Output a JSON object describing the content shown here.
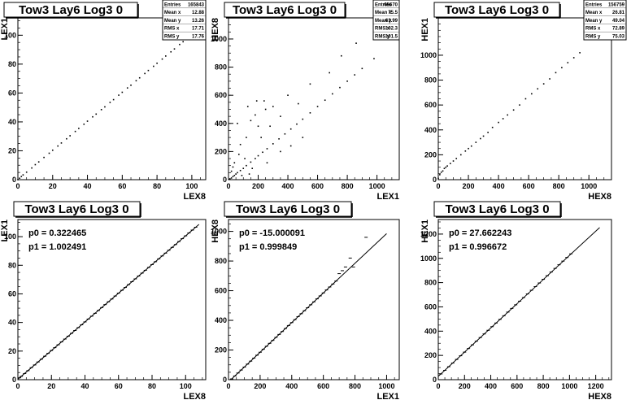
{
  "chart_data": [
    {
      "type": "scatter",
      "title": "Tow3 Lay6 Log3 0",
      "xlabel": "LEX8",
      "ylabel": "LEX1",
      "xlim": [
        0,
        108
      ],
      "ylim": [
        0,
        112
      ],
      "xticks": [
        "0",
        "20",
        "40",
        "60",
        "80",
        "100"
      ],
      "yticks": [
        "0",
        "20",
        "40",
        "60",
        "80",
        "100"
      ],
      "stats": [
        {
          "label": "Entries",
          "value": "165843"
        },
        {
          "label": "Mean x",
          "value": "12.88"
        },
        {
          "label": "Mean y",
          "value": "13.26"
        },
        {
          "label": "RMS x",
          "value": "17.71"
        },
        {
          "label": "RMS y",
          "value": "17.76"
        }
      ],
      "points": [
        [
          0,
          0
        ],
        [
          1,
          1
        ],
        [
          2,
          2.2
        ],
        [
          3,
          3.3
        ],
        [
          5,
          5.2
        ],
        [
          8,
          8.1
        ],
        [
          10,
          10.4
        ],
        [
          12,
          12.3
        ],
        [
          15,
          15.4
        ],
        [
          18,
          18.3
        ],
        [
          20,
          20.4
        ],
        [
          23,
          23.3
        ],
        [
          25,
          25.4
        ],
        [
          28,
          28.3
        ],
        [
          30,
          30.4
        ],
        [
          33,
          33.4
        ],
        [
          35,
          35.5
        ],
        [
          38,
          38.4
        ],
        [
          40,
          40.5
        ],
        [
          43,
          43.5
        ],
        [
          45,
          45.4
        ],
        [
          48,
          48.5
        ],
        [
          50,
          50.4
        ],
        [
          53,
          53.5
        ],
        [
          55,
          55.4
        ],
        [
          58,
          58.5
        ],
        [
          60,
          60.5
        ],
        [
          63,
          63.5
        ],
        [
          65,
          65.4
        ],
        [
          68,
          68.5
        ],
        [
          70,
          70.5
        ],
        [
          73,
          73.5
        ],
        [
          75,
          75.6
        ],
        [
          78,
          78.5
        ],
        [
          80,
          80.6
        ],
        [
          83,
          83.5
        ],
        [
          85,
          85.6
        ],
        [
          88,
          88.5
        ],
        [
          90,
          90.5
        ],
        [
          93,
          93.6
        ],
        [
          95,
          95.5
        ],
        [
          98,
          98.6
        ],
        [
          100,
          100.5
        ],
        [
          102,
          102.6
        ],
        [
          104,
          104.5
        ],
        [
          106,
          106.7
        ]
      ]
    },
    {
      "type": "scatter",
      "title": "Tow3 Lay6 Log3 0",
      "xlabel": "LEX1",
      "ylabel": "HEX8",
      "xlim": [
        0,
        1150
      ],
      "ylim": [
        0,
        1150
      ],
      "xticks": [
        "0",
        "200",
        "400",
        "600",
        "800",
        "1000"
      ],
      "yticks": [
        "0",
        "200",
        "400",
        "600",
        "800",
        "1000"
      ],
      "stats": [
        {
          "label": "Entries",
          "value": "65670"
        },
        {
          "label": "Mean x",
          "value": "75.5"
        },
        {
          "label": "Mean y",
          "value": "63.99"
        },
        {
          "label": "RMS x",
          "value": "102.3"
        },
        {
          "label": "RMS y",
          "value": "101.5"
        }
      ],
      "points": [
        [
          5,
          2
        ],
        [
          10,
          6
        ],
        [
          20,
          12
        ],
        [
          30,
          22
        ],
        [
          40,
          30
        ],
        [
          50,
          40
        ],
        [
          60,
          50
        ],
        [
          80,
          65
        ],
        [
          100,
          80
        ],
        [
          120,
          100
        ],
        [
          150,
          125
        ],
        [
          180,
          150
        ],
        [
          200,
          170
        ],
        [
          230,
          195
        ],
        [
          260,
          220
        ],
        [
          300,
          255
        ],
        [
          340,
          290
        ],
        [
          380,
          325
        ],
        [
          420,
          360
        ],
        [
          460,
          395
        ],
        [
          500,
          430
        ],
        [
          550,
          475
        ],
        [
          600,
          520
        ],
        [
          650,
          565
        ],
        [
          700,
          610
        ],
        [
          750,
          655
        ],
        [
          800,
          700
        ],
        [
          850,
          745
        ],
        [
          900,
          790
        ],
        [
          980,
          860
        ],
        [
          120,
          300
        ],
        [
          150,
          420
        ],
        [
          200,
          380
        ],
        [
          250,
          500
        ],
        [
          80,
          250
        ],
        [
          300,
          520
        ],
        [
          180,
          460
        ],
        [
          60,
          400
        ],
        [
          220,
          300
        ],
        [
          110,
          150
        ],
        [
          160,
          80
        ],
        [
          90,
          30
        ],
        [
          140,
          40
        ],
        [
          260,
          120
        ],
        [
          350,
          200
        ],
        [
          420,
          240
        ],
        [
          500,
          300
        ],
        [
          40,
          120
        ],
        [
          70,
          180
        ],
        [
          30,
          90
        ],
        [
          20,
          60
        ],
        [
          350,
          450
        ],
        [
          280,
          380
        ],
        [
          240,
          560
        ],
        [
          130,
          520
        ],
        [
          190,
          560
        ],
        [
          400,
          600
        ],
        [
          550,
          680
        ],
        [
          680,
          760
        ],
        [
          860,
          970
        ],
        [
          760,
          880
        ],
        [
          470,
          540
        ]
      ]
    },
    {
      "type": "scatter",
      "title": "Tow3 Lay6 Log3 0",
      "xlabel": "HEX8",
      "ylabel": "HEX1",
      "xlim": [
        0,
        1150
      ],
      "ylim": [
        0,
        1300
      ],
      "xticks": [
        "0",
        "200",
        "400",
        "600",
        "800",
        "1000"
      ],
      "yticks": [
        "0",
        "200",
        "400",
        "600",
        "800",
        "1000"
      ],
      "stats": [
        {
          "label": "Entries",
          "value": "156759"
        },
        {
          "label": "Mean x",
          "value": "26.81"
        },
        {
          "label": "Mean y",
          "value": "49.04"
        },
        {
          "label": "RMS x",
          "value": "72.89"
        },
        {
          "label": "RMS y",
          "value": "75.03"
        }
      ],
      "points": [
        [
          0,
          10
        ],
        [
          10,
          40
        ],
        [
          20,
          60
        ],
        [
          30,
          70
        ],
        [
          40,
          90
        ],
        [
          50,
          100
        ],
        [
          60,
          110
        ],
        [
          80,
          130
        ],
        [
          100,
          150
        ],
        [
          120,
          170
        ],
        [
          150,
          200
        ],
        [
          180,
          230
        ],
        [
          200,
          250
        ],
        [
          220,
          270
        ],
        [
          250,
          300
        ],
        [
          280,
          330
        ],
        [
          300,
          350
        ],
        [
          330,
          380
        ],
        [
          360,
          420
        ],
        [
          400,
          460
        ],
        [
          430,
          490
        ],
        [
          460,
          520
        ],
        [
          500,
          560
        ],
        [
          540,
          600
        ],
        [
          580,
          650
        ],
        [
          620,
          690
        ],
        [
          660,
          730
        ],
        [
          700,
          770
        ],
        [
          740,
          810
        ],
        [
          780,
          860
        ],
        [
          820,
          900
        ],
        [
          860,
          940
        ],
        [
          900,
          980
        ],
        [
          940,
          1020
        ]
      ]
    },
    {
      "type": "scatter",
      "title": "Tow3 Lay6 Log3 0",
      "xlabel": "LEX8",
      "ylabel": "LEX1",
      "xlim": [
        0,
        112
      ],
      "ylim": [
        0,
        112
      ],
      "xticks": [
        "0",
        "20",
        "40",
        "60",
        "80",
        "100"
      ],
      "yticks": [
        "0",
        "20",
        "40",
        "60",
        "80",
        "100"
      ],
      "fit": {
        "p0": "p0 = 0.322465",
        "p1": "p1 = 1.002491",
        "intercept": 0.322465,
        "slope": 1.002491,
        "x_end": 108
      },
      "points": [
        [
          1,
          1.3
        ],
        [
          2,
          2.3
        ],
        [
          4,
          4.3
        ],
        [
          6,
          6.3
        ],
        [
          8,
          8.4
        ],
        [
          10,
          10.3
        ],
        [
          12,
          12.4
        ],
        [
          14,
          14.3
        ],
        [
          16,
          16.4
        ],
        [
          18,
          18.4
        ],
        [
          20,
          20.4
        ],
        [
          22,
          22.4
        ],
        [
          24,
          24.4
        ],
        [
          26,
          26.4
        ],
        [
          28,
          28.4
        ],
        [
          30,
          30.4
        ],
        [
          32,
          32.4
        ],
        [
          34,
          34.4
        ],
        [
          36,
          36.4
        ],
        [
          38,
          38.4
        ],
        [
          40,
          40.4
        ],
        [
          42,
          42.4
        ],
        [
          44,
          44.4
        ],
        [
          46,
          46.4
        ],
        [
          48,
          48.4
        ],
        [
          50,
          50.4
        ],
        [
          52,
          52.5
        ],
        [
          54,
          54.5
        ],
        [
          56,
          56.4
        ],
        [
          58,
          58.5
        ],
        [
          60,
          60.5
        ],
        [
          62,
          62.5
        ],
        [
          64,
          64.5
        ],
        [
          66,
          66.5
        ],
        [
          68,
          68.5
        ],
        [
          70,
          70.5
        ],
        [
          72,
          72.5
        ],
        [
          74,
          74.5
        ],
        [
          76,
          76.5
        ],
        [
          78,
          78.5
        ],
        [
          80,
          80.5
        ],
        [
          82,
          82.5
        ],
        [
          84,
          84.5
        ],
        [
          86,
          86.5
        ],
        [
          88,
          88.5
        ],
        [
          90,
          90.5
        ],
        [
          92,
          92.5
        ],
        [
          94,
          94.5
        ],
        [
          96,
          96.6
        ],
        [
          98,
          98.6
        ],
        [
          100,
          100.6
        ],
        [
          102,
          102.6
        ],
        [
          104,
          104.6
        ],
        [
          106,
          106.6
        ]
      ]
    },
    {
      "type": "scatter",
      "title": "Tow3 Lay6 Log3 0",
      "xlabel": "LEX1",
      "ylabel": "HEX8",
      "xlim": [
        0,
        1080
      ],
      "ylim": [
        0,
        1080
      ],
      "xticks": [
        "0",
        "200",
        "400",
        "600",
        "800",
        "1000"
      ],
      "yticks": [
        "0",
        "200",
        "400",
        "600",
        "800",
        "1000"
      ],
      "fit": {
        "p0": "p0 = -15.000091",
        "p1": "p1 = 0.999849",
        "intercept": -15.000091,
        "slope": 0.999849,
        "x_end": 1000
      },
      "points": [
        [
          20,
          5
        ],
        [
          40,
          25
        ],
        [
          60,
          45
        ],
        [
          80,
          65
        ],
        [
          100,
          85
        ],
        [
          120,
          105
        ],
        [
          140,
          125
        ],
        [
          160,
          145
        ],
        [
          180,
          165
        ],
        [
          200,
          185
        ],
        [
          220,
          205
        ],
        [
          240,
          225
        ],
        [
          260,
          245
        ],
        [
          280,
          265
        ],
        [
          300,
          285
        ],
        [
          320,
          305
        ],
        [
          340,
          325
        ],
        [
          360,
          345
        ],
        [
          380,
          365
        ],
        [
          400,
          385
        ],
        [
          420,
          405
        ],
        [
          440,
          425
        ],
        [
          460,
          445
        ],
        [
          480,
          465
        ],
        [
          500,
          485
        ],
        [
          520,
          505
        ],
        [
          540,
          525
        ],
        [
          560,
          545
        ],
        [
          580,
          565
        ],
        [
          600,
          585
        ],
        [
          620,
          605
        ],
        [
          640,
          625
        ],
        [
          660,
          645
        ],
        [
          680,
          665
        ],
        [
          700,
          715
        ],
        [
          720,
          735
        ],
        [
          740,
          760
        ],
        [
          770,
          820
        ],
        [
          790,
          760
        ],
        [
          870,
          960
        ]
      ]
    },
    {
      "type": "scatter",
      "title": "Tow3 Lay6 Log3 0",
      "xlabel": "HEX8",
      "ylabel": "HEX1",
      "xlim": [
        0,
        1320
      ],
      "ylim": [
        0,
        1320
      ],
      "xticks": [
        "0",
        "200",
        "400",
        "600",
        "800",
        "1000",
        "1200"
      ],
      "yticks": [
        "0",
        "200",
        "400",
        "600",
        "800",
        "1000",
        "1200"
      ],
      "fit": {
        "p0": "p0 = 27.662243",
        "p1": "p1 = 0.996672",
        "intercept": 27.662243,
        "slope": 0.996672,
        "x_end": 1230
      },
      "points": [
        [
          20,
          47
        ],
        [
          50,
          77
        ],
        [
          80,
          107
        ],
        [
          110,
          137
        ],
        [
          140,
          167
        ],
        [
          170,
          197
        ],
        [
          200,
          227
        ],
        [
          230,
          257
        ],
        [
          260,
          287
        ],
        [
          290,
          317
        ],
        [
          320,
          347
        ],
        [
          350,
          377
        ],
        [
          380,
          407
        ],
        [
          410,
          437
        ],
        [
          440,
          467
        ],
        [
          470,
          497
        ],
        [
          500,
          527
        ],
        [
          530,
          557
        ],
        [
          560,
          587
        ],
        [
          590,
          617
        ],
        [
          620,
          647
        ],
        [
          650,
          677
        ],
        [
          680,
          707
        ],
        [
          710,
          737
        ],
        [
          740,
          767
        ],
        [
          770,
          797
        ],
        [
          800,
          827
        ],
        [
          830,
          857
        ],
        [
          860,
          887
        ],
        [
          890,
          917
        ],
        [
          920,
          947
        ],
        [
          950,
          977
        ],
        [
          980,
          1007
        ],
        [
          1010,
          1037
        ]
      ]
    }
  ]
}
